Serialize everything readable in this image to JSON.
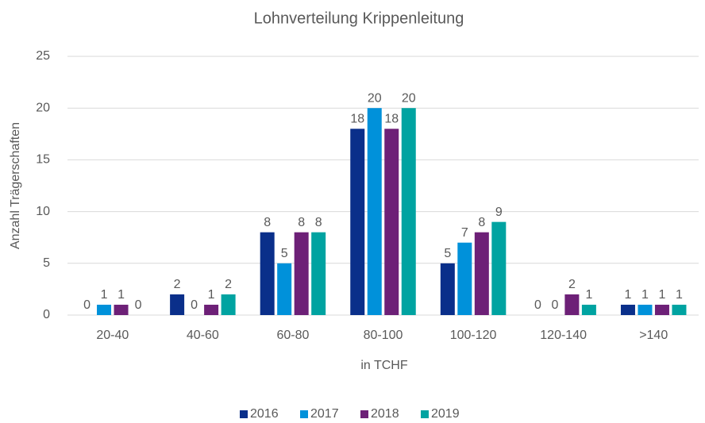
{
  "chart_data": {
    "type": "bar",
    "title": "Lohnverteilung Krippenleitung",
    "x_label": "in TCHF",
    "y_label": "Anzahl Trägerschaften",
    "categories": [
      "20-40",
      "40-60",
      "60-80",
      "80-100",
      "100-120",
      "120-140",
      ">140"
    ],
    "series": [
      {
        "name": "2016",
        "color": "#0a2f8a",
        "values": [
          0,
          2,
          8,
          18,
          5,
          0,
          1
        ]
      },
      {
        "name": "2017",
        "color": "#0091da",
        "values": [
          1,
          0,
          5,
          20,
          7,
          0,
          1
        ]
      },
      {
        "name": "2018",
        "color": "#6d2077",
        "values": [
          1,
          1,
          8,
          18,
          8,
          2,
          1
        ]
      },
      {
        "name": "2019",
        "color": "#00a3a1",
        "values": [
          0,
          2,
          8,
          20,
          9,
          1,
          1
        ]
      }
    ],
    "ylim": [
      0,
      25
    ],
    "yticks": [
      0,
      5,
      10,
      15,
      20,
      25
    ],
    "grid": true,
    "legend": "bottom"
  }
}
